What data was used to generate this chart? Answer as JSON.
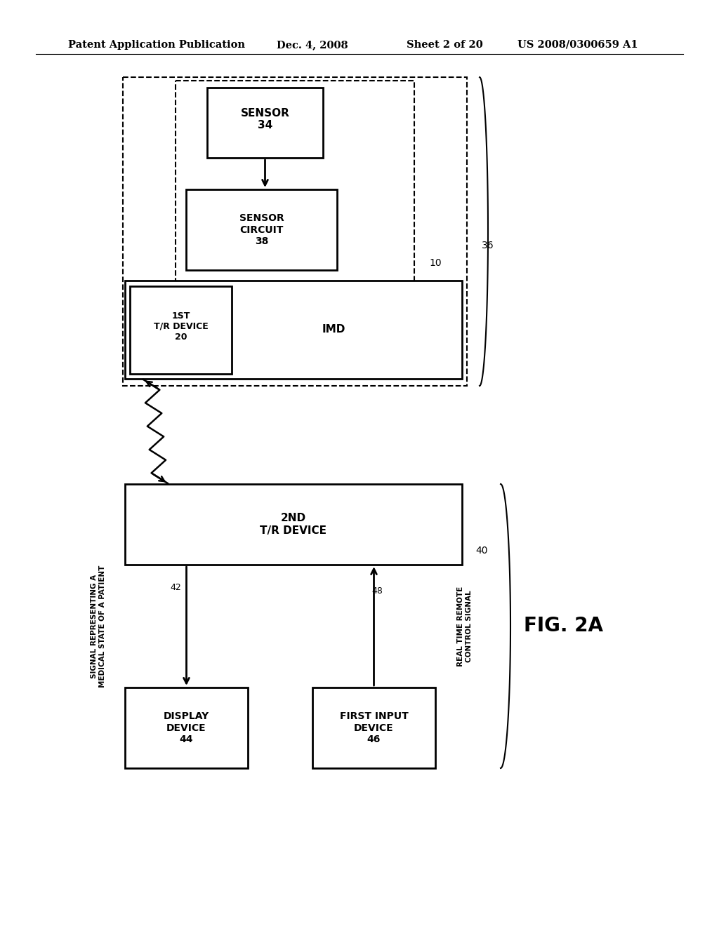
{
  "title_left": "Patent Application Publication",
  "title_mid": "Dec. 4, 2008",
  "title_right1": "Sheet 2 of 20",
  "title_right2": "US 2008/0300659 A1",
  "fig_label": "FIG. 2A",
  "background_color": "#ffffff"
}
